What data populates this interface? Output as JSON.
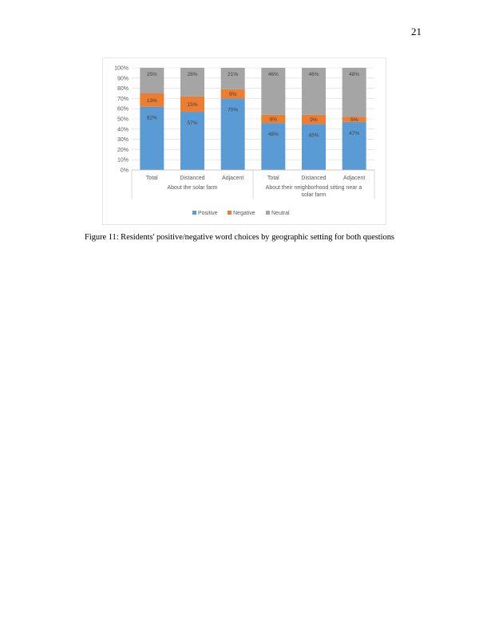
{
  "page": {
    "number": "21"
  },
  "caption": "Figure 11: Residents' positive/negative word choices by geographic setting for both questions",
  "colors": {
    "positive": "#5b9bd5",
    "negative": "#ed7d31",
    "neutral": "#a5a5a5",
    "axis_text": "#595959",
    "grid": "#d9d9d9"
  },
  "chart_data": {
    "type": "bar",
    "stacked": true,
    "categories": [
      "Total",
      "Distanced",
      "Adjacent",
      "Total",
      "Distanced",
      "Adjacent"
    ],
    "groups": [
      {
        "label": "About the solar farm",
        "categories": [
          0,
          1,
          2
        ]
      },
      {
        "label": "About their neighborhood sitting near a solar farm",
        "categories": [
          3,
          4,
          5
        ]
      }
    ],
    "series": [
      {
        "name": "Positive",
        "color": "#5b9bd5",
        "values": [
          62,
          57,
          70,
          46,
          45,
          47
        ],
        "labels": [
          "62%",
          "57%",
          "70%",
          "46%",
          "45%",
          "47%"
        ]
      },
      {
        "name": "Negative",
        "color": "#ed7d31",
        "values": [
          13,
          15,
          9,
          8,
          9,
          5
        ],
        "labels": [
          "13%",
          "15%",
          "9%",
          "8%",
          "9%",
          "5%"
        ]
      },
      {
        "name": "Neutral",
        "color": "#a5a5a5",
        "values": [
          25,
          28,
          21,
          46,
          46,
          48
        ],
        "labels": [
          "25%",
          "28%",
          "21%",
          "46%",
          "46%",
          "48%"
        ]
      }
    ],
    "yticks": [
      "0%",
      "10%",
      "20%",
      "30%",
      "40%",
      "50%",
      "60%",
      "70%",
      "80%",
      "90%",
      "100%"
    ],
    "ylim": [
      0,
      100
    ],
    "grid": true,
    "legend_position": "bottom",
    "title": "",
    "xlabel": "",
    "ylabel": ""
  }
}
